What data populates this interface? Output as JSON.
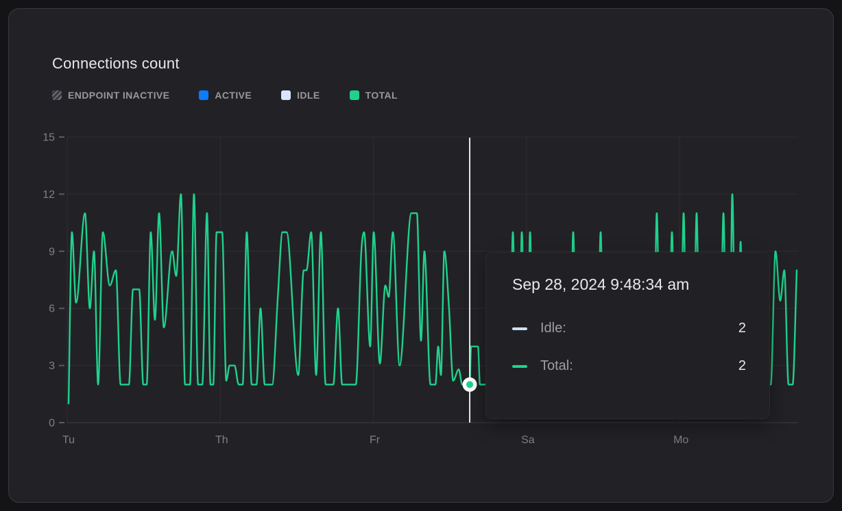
{
  "card": {
    "title": "Connections count"
  },
  "legend": {
    "items": [
      {
        "label": "ENDPOINT INACTIVE",
        "swatch": "hatched",
        "color": "#71717a"
      },
      {
        "label": "ACTIVE",
        "swatch": "solid",
        "color": "#0a7cff"
      },
      {
        "label": "IDLE",
        "swatch": "solid",
        "color": "#d9e5fc"
      },
      {
        "label": "TOTAL",
        "swatch": "solid",
        "color": "#1fd28c"
      }
    ]
  },
  "chart_data": {
    "type": "line",
    "title": "Connections count",
    "ylim": [
      0,
      15
    ],
    "y_ticks": [
      0,
      3,
      6,
      9,
      12,
      15
    ],
    "x_ticks": [
      {
        "label": "Tu",
        "t": 0
      },
      {
        "label": "Th",
        "t": 1
      },
      {
        "label": "Fr",
        "t": 2
      },
      {
        "label": "Sa",
        "t": 3
      },
      {
        "label": "Mo",
        "t": 4
      }
    ],
    "x_range": [
      -0.013,
      4.774
    ],
    "grid": true,
    "colors": {
      "grid": "#2e2e33",
      "axis": "#3e3e44",
      "tick": "#5a5a60",
      "tick_label": "#7f7f85",
      "cursor": "#e9ebee",
      "line": "#1fd28c"
    },
    "series": [
      {
        "name": "Total",
        "color": "#1fd28c",
        "points": [
          [
            0.009,
            1
          ],
          [
            0.031,
            10
          ],
          [
            0.058,
            6.3
          ],
          [
            0.116,
            11
          ],
          [
            0.148,
            6
          ],
          [
            0.175,
            9
          ],
          [
            0.202,
            2
          ],
          [
            0.233,
            10
          ],
          [
            0.278,
            7.2
          ],
          [
            0.318,
            8
          ],
          [
            0.349,
            2
          ],
          [
            0.403,
            2
          ],
          [
            0.43,
            7
          ],
          [
            0.47,
            7
          ],
          [
            0.497,
            2
          ],
          [
            0.519,
            2
          ],
          [
            0.546,
            10
          ],
          [
            0.573,
            5.4
          ],
          [
            0.6,
            11
          ],
          [
            0.631,
            5
          ],
          [
            0.685,
            9
          ],
          [
            0.712,
            7.7
          ],
          [
            0.743,
            12
          ],
          [
            0.77,
            2
          ],
          [
            0.802,
            2
          ],
          [
            0.828,
            12
          ],
          [
            0.855,
            2
          ],
          [
            0.882,
            2
          ],
          [
            0.913,
            11
          ],
          [
            0.936,
            2
          ],
          [
            0.954,
            2
          ],
          [
            0.976,
            10
          ],
          [
            1.012,
            10
          ],
          [
            1.039,
            2.2
          ],
          [
            1.061,
            3
          ],
          [
            1.093,
            3
          ],
          [
            1.12,
            2
          ],
          [
            1.146,
            2
          ],
          [
            1.173,
            10
          ],
          [
            1.205,
            2
          ],
          [
            1.236,
            2
          ],
          [
            1.263,
            6
          ],
          [
            1.29,
            2
          ],
          [
            1.339,
            2
          ],
          [
            1.375,
            6.5
          ],
          [
            1.406,
            10
          ],
          [
            1.433,
            10
          ],
          [
            1.509,
            2.5
          ],
          [
            1.545,
            8
          ],
          [
            1.563,
            8
          ],
          [
            1.594,
            10
          ],
          [
            1.626,
            2.5
          ],
          [
            1.657,
            10
          ],
          [
            1.688,
            2
          ],
          [
            1.738,
            2
          ],
          [
            1.769,
            6
          ],
          [
            1.796,
            2
          ],
          [
            1.885,
            2
          ],
          [
            1.921,
            9
          ],
          [
            1.939,
            10
          ],
          [
            1.979,
            4
          ],
          [
            2.002,
            10
          ],
          [
            2.042,
            3.1
          ],
          [
            2.078,
            7.2
          ],
          [
            2.1,
            6.6
          ],
          [
            2.127,
            10
          ],
          [
            2.171,
            3
          ],
          [
            2.248,
            11
          ],
          [
            2.284,
            11
          ],
          [
            2.311,
            4.3
          ],
          [
            2.333,
            9
          ],
          [
            2.373,
            2
          ],
          [
            2.405,
            2
          ],
          [
            2.423,
            4
          ],
          [
            2.441,
            2.5
          ],
          [
            2.463,
            9
          ],
          [
            2.494,
            6
          ],
          [
            2.521,
            2.2
          ],
          [
            2.557,
            2.8
          ],
          [
            2.58,
            2
          ],
          [
            2.629,
            2
          ],
          [
            2.638,
            4
          ],
          [
            2.683,
            4
          ],
          [
            2.696,
            2
          ],
          [
            2.889,
            2
          ],
          [
            2.911,
            10
          ],
          [
            2.933,
            2
          ],
          [
            2.951,
            2
          ],
          [
            2.969,
            10
          ],
          [
            2.992,
            2
          ],
          [
            3.005,
            2
          ],
          [
            3.023,
            10
          ],
          [
            3.045,
            2
          ],
          [
            3.283,
            2
          ],
          [
            3.305,
            10
          ],
          [
            3.327,
            2
          ],
          [
            3.462,
            2
          ],
          [
            3.484,
            10
          ],
          [
            3.506,
            2
          ],
          [
            3.829,
            2
          ],
          [
            3.851,
            11
          ],
          [
            3.874,
            2
          ],
          [
            3.927,
            2
          ],
          [
            3.95,
            10
          ],
          [
            3.972,
            2
          ],
          [
            4.004,
            2
          ],
          [
            4.026,
            11
          ],
          [
            4.048,
            2
          ],
          [
            4.089,
            2
          ],
          [
            4.111,
            11
          ],
          [
            4.133,
            2
          ],
          [
            4.263,
            2
          ],
          [
            4.286,
            11
          ],
          [
            4.308,
            2
          ],
          [
            4.326,
            2
          ],
          [
            4.344,
            12
          ],
          [
            4.366,
            2
          ],
          [
            4.38,
            2
          ],
          [
            4.398,
            9.5
          ],
          [
            4.42,
            2
          ],
          [
            4.595,
            2
          ],
          [
            4.626,
            9
          ],
          [
            4.657,
            6.4
          ],
          [
            4.684,
            8
          ],
          [
            4.711,
            2
          ],
          [
            4.738,
            2
          ],
          [
            4.765,
            8
          ]
        ]
      }
    ],
    "cursor": {
      "t": 2.629,
      "v": 2
    }
  },
  "tooltip": {
    "date": "Sep 28, 2024 9:48:34 am",
    "rows": [
      {
        "label": "Idle:",
        "value": "2",
        "color": "#cfe0fb"
      },
      {
        "label": "Total:",
        "value": "2",
        "color": "#1fd28c"
      }
    ]
  }
}
